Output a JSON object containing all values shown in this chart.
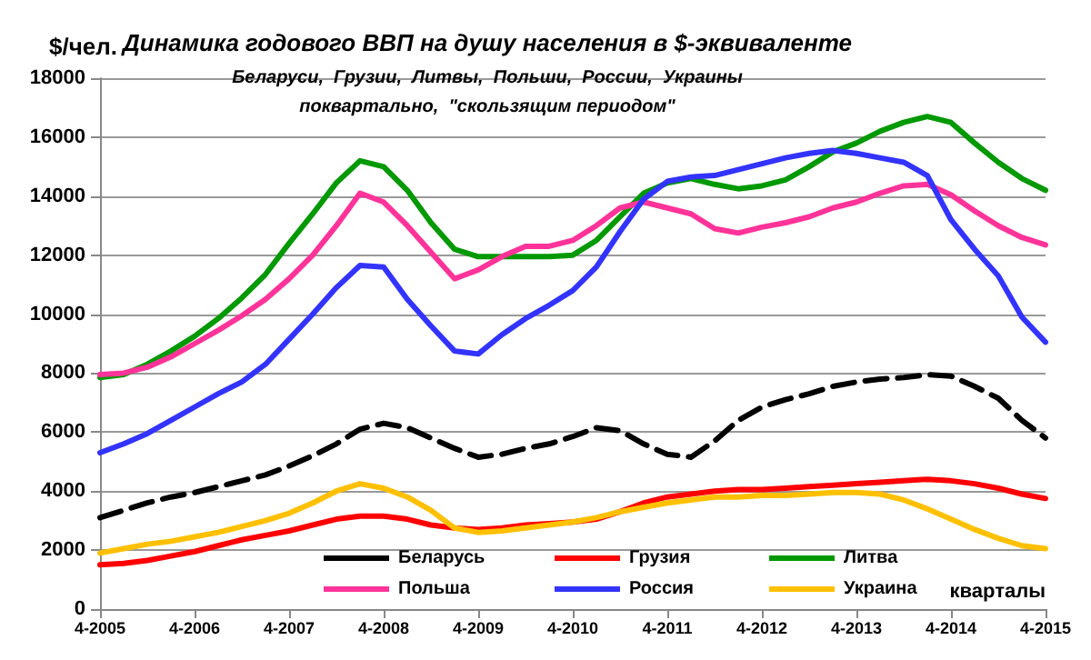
{
  "chart_data": {
    "type": "line",
    "title": "Динамика годового ВВП на душу населения в $-эквиваленте",
    "subtitle": "Беларуси,  Грузии,  Литвы,  Польши,  России,  Украины\nпоквартально,  \"скользящим периодом\"",
    "ylabel": "$/чел.",
    "xlabel": "кварталы",
    "categories": [
      "4-2005",
      null,
      null,
      null,
      "4-2006",
      null,
      null,
      null,
      "4-2007",
      null,
      null,
      null,
      "4-2008",
      null,
      null,
      null,
      "4-2009",
      null,
      null,
      null,
      "4-2010",
      null,
      null,
      null,
      "4-2011",
      null,
      null,
      null,
      "4-2012",
      null,
      null,
      null,
      "4-2013",
      null,
      null,
      null,
      "4-2014",
      null,
      null,
      null,
      "4-2015"
    ],
    "series": [
      {
        "name": "Беларусь",
        "color": "#000000",
        "line_style": "dashed",
        "values": [
          3100,
          3350,
          3600,
          3800,
          3950,
          4150,
          4350,
          4550,
          4850,
          5200,
          5600,
          6100,
          6300,
          6150,
          5800,
          5450,
          5150,
          5250,
          5450,
          5600,
          5850,
          6150,
          6050,
          5600,
          5250,
          5150,
          5700,
          6400,
          6850,
          7100,
          7300,
          7550,
          7700,
          7800,
          7850,
          7950,
          7900,
          7550,
          7150,
          6400,
          5800
        ]
      },
      {
        "name": "Грузия",
        "color": "#ff0000",
        "values": [
          1500,
          1550,
          1650,
          1800,
          1950,
          2150,
          2350,
          2500,
          2650,
          2850,
          3050,
          3150,
          3150,
          3050,
          2850,
          2750,
          2700,
          2750,
          2850,
          2900,
          2950,
          3050,
          3300,
          3600,
          3800,
          3900,
          4000,
          4050,
          4050,
          4100,
          4150,
          4200,
          4250,
          4300,
          4350,
          4400,
          4350,
          4250,
          4100,
          3900,
          3750
        ]
      },
      {
        "name": "Литва",
        "color": "#009900",
        "values": [
          7850,
          7950,
          8300,
          8750,
          9250,
          9850,
          10550,
          11350,
          12400,
          13400,
          14450,
          15200,
          15000,
          14200,
          13100,
          12200,
          11950,
          11950,
          11950,
          11950,
          12000,
          12500,
          13300,
          14100,
          14450,
          14600,
          14400,
          14250,
          14350,
          14550,
          15000,
          15500,
          15800,
          16200,
          16500,
          16700,
          16500,
          15800,
          15150,
          14600,
          14200
        ]
      },
      {
        "name": "Польша",
        "color": "#ff3399",
        "values": [
          7950,
          8000,
          8200,
          8550,
          9000,
          9450,
          9950,
          10500,
          11200,
          12000,
          13000,
          14100,
          13800,
          13000,
          12100,
          11200,
          11500,
          11950,
          12300,
          12300,
          12500,
          13000,
          13600,
          13800,
          13600,
          13400,
          12900,
          12750,
          12950,
          13100,
          13300,
          13600,
          13800,
          14100,
          14350,
          14400,
          14050,
          13500,
          13000,
          12600,
          12350
        ]
      },
      {
        "name": "Россия",
        "color": "#3333ff",
        "values": [
          5300,
          5600,
          5950,
          6400,
          6850,
          7300,
          7700,
          8300,
          9150,
          10000,
          10900,
          11650,
          11600,
          10500,
          9600,
          8750,
          8650,
          9300,
          9850,
          10300,
          10800,
          11600,
          12800,
          13900,
          14500,
          14650,
          14700,
          14900,
          15100,
          15300,
          15450,
          15550,
          15450,
          15300,
          15150,
          14700,
          13200,
          12200,
          11300,
          9900,
          9050
        ]
      },
      {
        "name": "Украина",
        "color": "#ffc000",
        "values": [
          1900,
          2050,
          2200,
          2300,
          2450,
          2600,
          2800,
          3000,
          3250,
          3600,
          4000,
          4250,
          4100,
          3800,
          3350,
          2750,
          2600,
          2650,
          2750,
          2850,
          2950,
          3100,
          3300,
          3450,
          3600,
          3700,
          3800,
          3800,
          3850,
          3850,
          3900,
          3950,
          3950,
          3900,
          3700,
          3400,
          3050,
          2700,
          2400,
          2150,
          2050
        ]
      }
    ],
    "ylim": [
      0,
      18000
    ],
    "yticks": [
      0,
      2000,
      4000,
      6000,
      8000,
      10000,
      12000,
      14000,
      16000,
      18000
    ],
    "grid": "y",
    "legend": "bottom",
    "marker": "none"
  }
}
